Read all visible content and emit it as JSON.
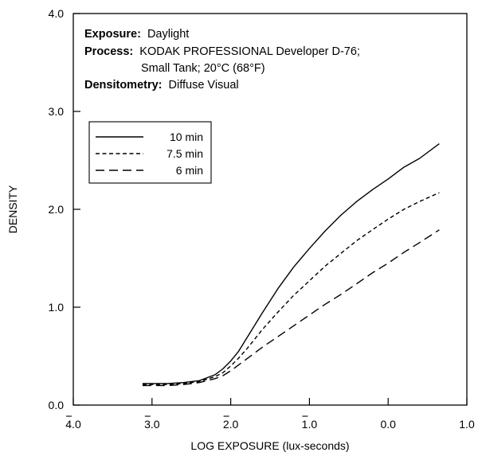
{
  "chart_data": {
    "type": "line",
    "xlabel": "LOG EXPOSURE (lux-seconds)",
    "ylabel": "DENSITY",
    "xlim": [
      -4.0,
      1.0
    ],
    "ylim": [
      0.0,
      4.0
    ],
    "grid": false,
    "legend_position": "upper-left",
    "x_ticks": [
      -4.0,
      -3.0,
      -2.0,
      -1.0,
      0.0,
      1.0
    ],
    "x_tick_labels": [
      "4.0",
      "3.0",
      "2.0",
      "1.0",
      "0.0",
      "1.0"
    ],
    "x_tick_bar": [
      true,
      true,
      true,
      true,
      false,
      false
    ],
    "y_ticks": [
      0.0,
      1.0,
      2.0,
      3.0,
      4.0
    ],
    "y_tick_labels": [
      "0.0",
      "1.0",
      "2.0",
      "3.0",
      "4.0"
    ],
    "info": {
      "exposure_label": "Exposure:",
      "exposure_value": "Daylight",
      "process_label": "Process:",
      "process_value_line1": "KODAK PROFESSIONAL Developer D-76;",
      "process_value_line2": "Small Tank; 20°C (68°F)",
      "densitometry_label": "Densitometry:",
      "densitometry_value": "Diffuse Visual"
    },
    "series": [
      {
        "name": "10 min",
        "dash": "solid",
        "x": [
          -3.12,
          -2.8,
          -2.6,
          -2.4,
          -2.2,
          -2.1,
          -2.0,
          -1.9,
          -1.8,
          -1.6,
          -1.4,
          -1.2,
          -1.0,
          -0.8,
          -0.6,
          -0.4,
          -0.2,
          0.0,
          0.2,
          0.4,
          0.65
        ],
        "y": [
          0.22,
          0.22,
          0.23,
          0.25,
          0.31,
          0.37,
          0.45,
          0.55,
          0.68,
          0.94,
          1.19,
          1.41,
          1.6,
          1.78,
          1.94,
          2.08,
          2.2,
          2.31,
          2.43,
          2.52,
          2.67
        ]
      },
      {
        "name": "7.5 min",
        "dash": "short-dash",
        "x": [
          -3.12,
          -2.8,
          -2.6,
          -2.4,
          -2.2,
          -2.1,
          -2.0,
          -1.9,
          -1.8,
          -1.6,
          -1.4,
          -1.2,
          -1.0,
          -0.8,
          -0.6,
          -0.4,
          -0.2,
          0.0,
          0.2,
          0.4,
          0.65
        ],
        "y": [
          0.21,
          0.21,
          0.22,
          0.24,
          0.29,
          0.33,
          0.4,
          0.48,
          0.57,
          0.77,
          0.95,
          1.12,
          1.27,
          1.42,
          1.55,
          1.68,
          1.79,
          1.9,
          2.0,
          2.08,
          2.17
        ]
      },
      {
        "name": "6 min",
        "dash": "long-dash",
        "x": [
          -3.12,
          -2.8,
          -2.6,
          -2.4,
          -2.2,
          -2.1,
          -2.0,
          -1.9,
          -1.8,
          -1.6,
          -1.4,
          -1.2,
          -1.0,
          -0.8,
          -0.6,
          -0.4,
          -0.2,
          0.0,
          0.2,
          0.4,
          0.65
        ],
        "y": [
          0.2,
          0.2,
          0.21,
          0.23,
          0.27,
          0.3,
          0.35,
          0.41,
          0.47,
          0.59,
          0.7,
          0.81,
          0.92,
          1.03,
          1.13,
          1.24,
          1.35,
          1.45,
          1.56,
          1.66,
          1.79
        ]
      }
    ]
  }
}
